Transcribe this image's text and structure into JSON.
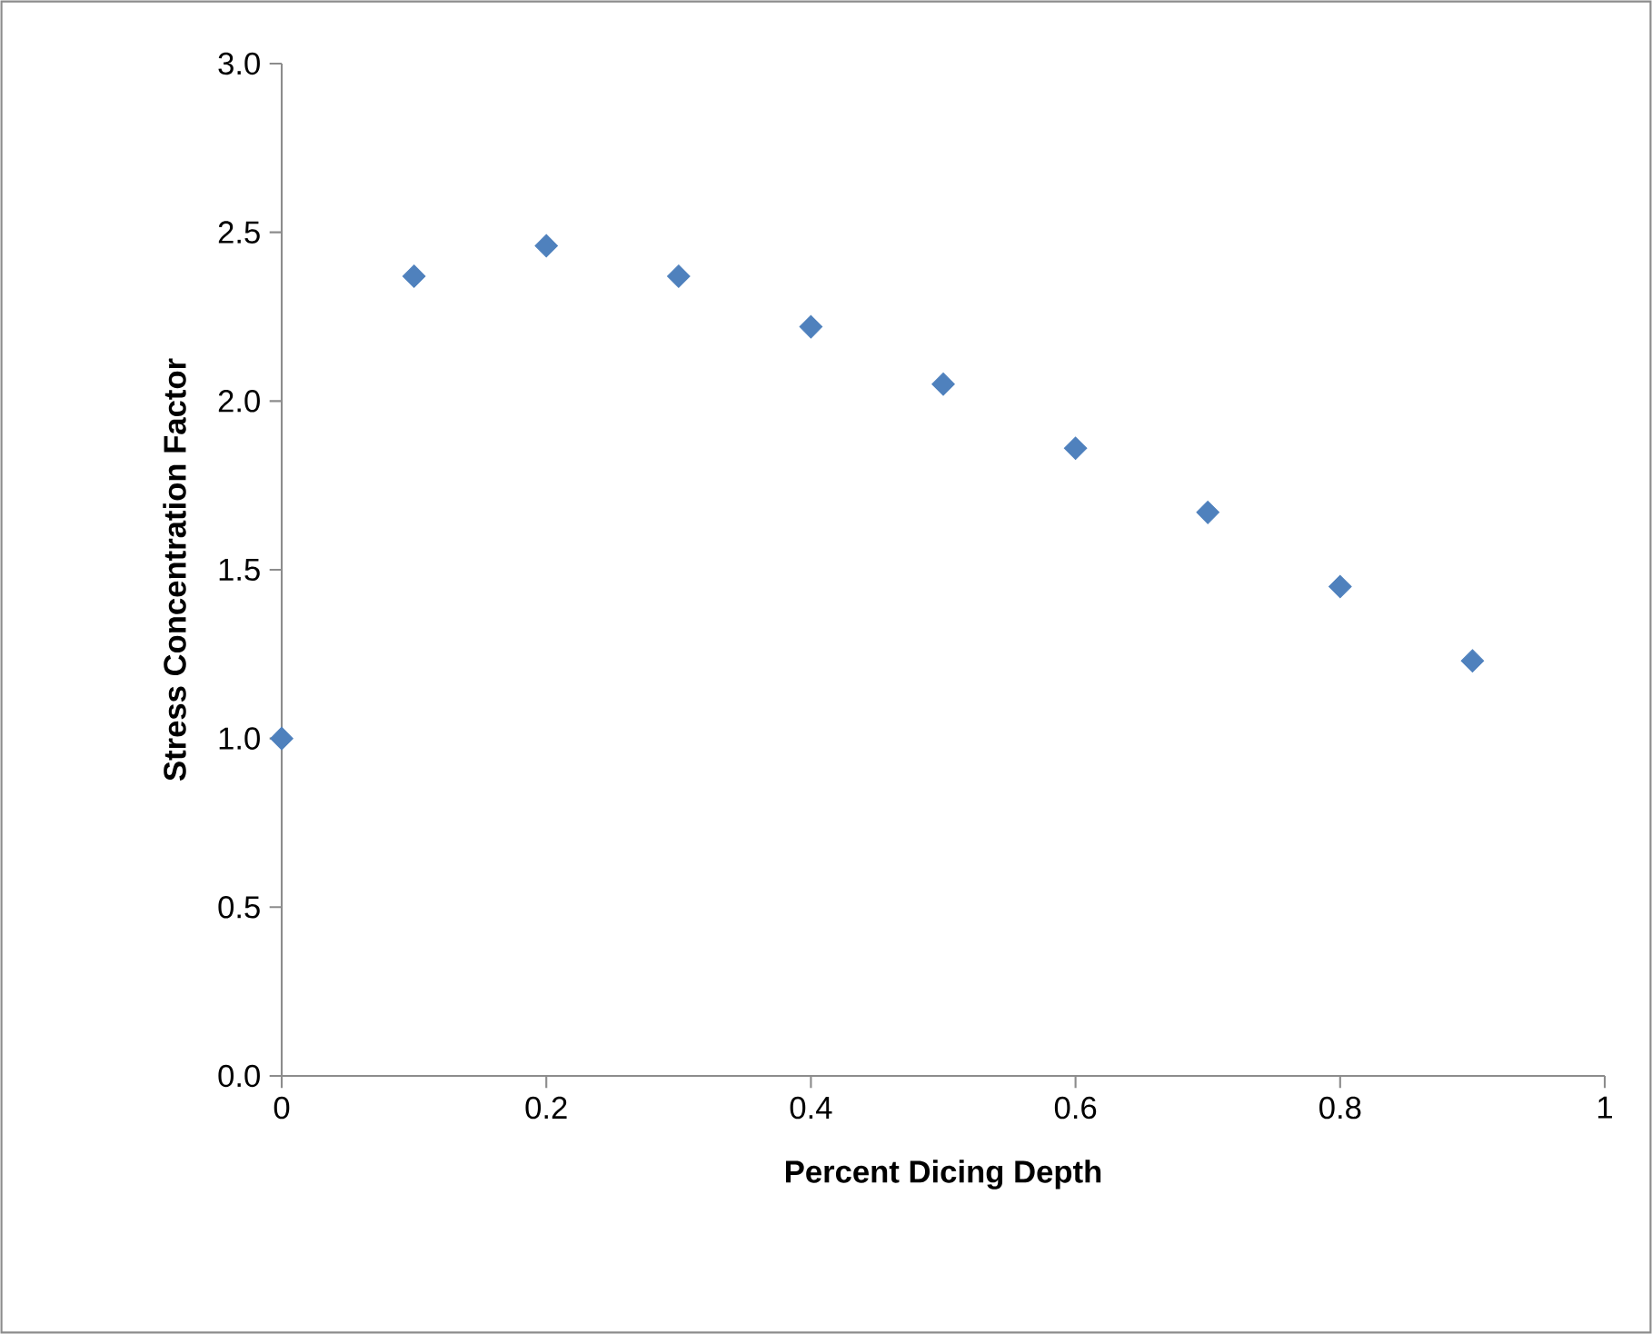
{
  "chart_data": {
    "type": "scatter",
    "xlabel": "Percent Dicing Depth",
    "ylabel": "Stress Concentration Factor",
    "x": [
      0,
      0.1,
      0.2,
      0.3,
      0.4,
      0.5,
      0.6,
      0.7,
      0.8,
      0.9
    ],
    "series": [
      {
        "color": "#4f81bd",
        "values": [
          1.0,
          2.37,
          2.46,
          2.37,
          2.22,
          2.05,
          1.86,
          1.67,
          1.45,
          1.23
        ]
      }
    ],
    "xlim": [
      0,
      1
    ],
    "xticks": [
      0,
      0.2,
      0.4,
      0.6,
      0.8,
      1
    ],
    "ylim": [
      0,
      3
    ],
    "yticks": [
      {
        "value": 0,
        "label": "0.0"
      },
      {
        "value": 0.5,
        "label": "0.5"
      },
      {
        "value": 1,
        "label": "1.0"
      },
      {
        "value": 1.5,
        "label": "1.5"
      },
      {
        "value": 2,
        "label": "2.0"
      },
      {
        "value": 2.5,
        "label": "2.5"
      },
      {
        "value": 3,
        "label": "3.0"
      }
    ],
    "marker": "diamond"
  }
}
